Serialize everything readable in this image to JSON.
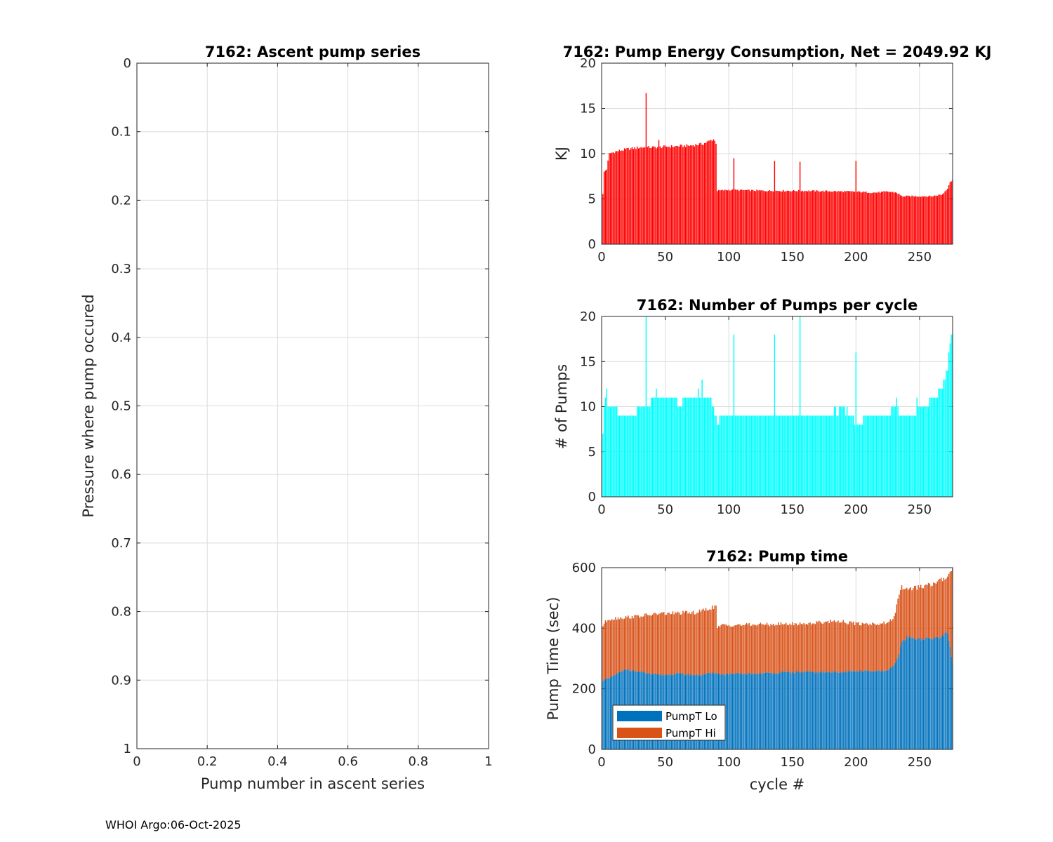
{
  "footer": "WHOI Argo:06-Oct-2025",
  "colors": {
    "energy": "#ff0000",
    "pumps": "#00ffff",
    "lo": "#0072bd",
    "hi": "#d95319",
    "grid": "#dcdcdc",
    "axis": "#262626"
  },
  "chart_data": [
    {
      "id": "ascent",
      "type": "scatter",
      "title": "7162: Ascent pump series",
      "xlabel": "Pump number in ascent series",
      "ylabel": "Pressure where pump occured",
      "xlim": [
        0,
        1
      ],
      "ylim": [
        0,
        1
      ],
      "y_reversed": true,
      "grid": true,
      "xticks": [
        "0",
        "0.2",
        "0.4",
        "0.6",
        "0.8",
        "1"
      ],
      "yticks": [
        "0",
        "0.1",
        "0.2",
        "0.3",
        "0.4",
        "0.5",
        "0.6",
        "0.7",
        "0.8",
        "0.9",
        "1"
      ],
      "series": []
    },
    {
      "id": "energy",
      "type": "bar",
      "title": "7162: Pump Energy Consumption,  Net = 2049.92 KJ",
      "xlabel": "",
      "ylabel": "KJ",
      "xlim": [
        0,
        276
      ],
      "ylim": [
        0,
        20
      ],
      "grid": true,
      "xticks": [
        "0",
        "50",
        "100",
        "150",
        "200",
        "250"
      ],
      "yticks": [
        "0",
        "5",
        "10",
        "15",
        "20"
      ],
      "series": [
        {
          "name": "Energy (KJ)",
          "color": "#ff0000",
          "segments": [
            [
              1,
              5.5
            ],
            [
              2,
              8.0
            ],
            [
              4,
              8.3
            ],
            [
              6,
              10.0
            ],
            [
              10,
              10.2
            ],
            [
              20,
              10.5
            ],
            [
              30,
              10.7
            ],
            [
              40,
              10.7
            ],
            [
              55,
              10.8
            ],
            [
              70,
              10.9
            ],
            [
              80,
              11.1
            ],
            [
              88,
              11.6
            ],
            [
              90,
              11.2
            ],
            [
              91,
              5.9
            ],
            [
              100,
              6.0
            ],
            [
              130,
              5.9
            ],
            [
              160,
              5.9
            ],
            [
              200,
              5.8
            ],
            [
              215,
              5.7
            ],
            [
              225,
              5.8
            ],
            [
              232,
              5.7
            ],
            [
              236,
              5.3
            ],
            [
              260,
              5.3
            ],
            [
              268,
              5.5
            ],
            [
              272,
              6.2
            ],
            [
              274,
              6.9
            ],
            [
              276,
              7.0
            ]
          ],
          "spikes": [
            [
              35,
              16.7
            ],
            [
              45,
              11.5
            ],
            [
              104,
              9.5
            ],
            [
              136,
              9.2
            ],
            [
              156,
              9.1
            ],
            [
              200,
              9.2
            ]
          ]
        }
      ]
    },
    {
      "id": "pumps",
      "type": "bar",
      "title": "7162: Number of Pumps per cycle",
      "xlabel": "",
      "ylabel": "# of Pumps",
      "xlim": [
        0,
        276
      ],
      "ylim": [
        0,
        20
      ],
      "grid": true,
      "xticks": [
        "0",
        "50",
        "100",
        "150",
        "200",
        "250"
      ],
      "yticks": [
        "0",
        "5",
        "10",
        "15",
        "20"
      ],
      "series": [
        {
          "name": "# of Pumps",
          "color": "#00ffff",
          "segments": [
            [
              1,
              7
            ],
            [
              2,
              10
            ],
            [
              6,
              10
            ],
            [
              10,
              10
            ],
            [
              14,
              9
            ],
            [
              26,
              9
            ],
            [
              30,
              10
            ],
            [
              36,
              10
            ],
            [
              40,
              11
            ],
            [
              58,
              11
            ],
            [
              60,
              10
            ],
            [
              70,
              11
            ],
            [
              85,
              11
            ],
            [
              91,
              8
            ],
            [
              94,
              9
            ],
            [
              115,
              9
            ],
            [
              125,
              9
            ],
            [
              140,
              9
            ],
            [
              150,
              9
            ],
            [
              170,
              9
            ],
            [
              180,
              9
            ],
            [
              190,
              10
            ],
            [
              200,
              8
            ],
            [
              210,
              9
            ],
            [
              226,
              9
            ],
            [
              230,
              10
            ],
            [
              234,
              9
            ],
            [
              244,
              9
            ],
            [
              250,
              10
            ],
            [
              256,
              10
            ],
            [
              262,
              11
            ],
            [
              266,
              12
            ],
            [
              270,
              13
            ],
            [
              272,
              14
            ],
            [
              274,
              17
            ],
            [
              276,
              18
            ]
          ],
          "spikes": [
            [
              3,
              11
            ],
            [
              4,
              12
            ],
            [
              35,
              20
            ],
            [
              43,
              12
            ],
            [
              76,
              12
            ],
            [
              79,
              13
            ],
            [
              104,
              18
            ],
            [
              136,
              18
            ],
            [
              156,
              20
            ],
            [
              200,
              16
            ],
            [
              232,
              11
            ],
            [
              248,
              11
            ],
            [
              258,
              11
            ]
          ]
        }
      ]
    },
    {
      "id": "pumptime",
      "type": "bar",
      "stacked": true,
      "title": "7162: Pump time",
      "xlabel": "cycle #",
      "ylabel": "Pump Time (sec)",
      "xlim": [
        0,
        276
      ],
      "ylim": [
        0,
        600
      ],
      "grid": true,
      "legend": {
        "entries": [
          "PumpT Lo",
          "PumpT Hi"
        ],
        "location": "bottom-left"
      },
      "xticks": [
        "0",
        "50",
        "100",
        "150",
        "200",
        "250"
      ],
      "yticks": [
        "0",
        "200",
        "400",
        "600"
      ],
      "series": [
        {
          "name": "PumpT Lo",
          "color": "#0072bd",
          "segments": [
            [
              1,
              230
            ],
            [
              5,
              232
            ],
            [
              10,
              245
            ],
            [
              20,
              265
            ],
            [
              30,
              255
            ],
            [
              45,
              245
            ],
            [
              60,
              250
            ],
            [
              75,
              245
            ],
            [
              85,
              250
            ],
            [
              90,
              255
            ],
            [
              92,
              248
            ],
            [
              120,
              250
            ],
            [
              150,
              255
            ],
            [
              180,
              255
            ],
            [
              200,
              258
            ],
            [
              225,
              258
            ],
            [
              230,
              280
            ],
            [
              233,
              300
            ],
            [
              236,
              355
            ],
            [
              240,
              370
            ],
            [
              250,
              365
            ],
            [
              260,
              365
            ],
            [
              268,
              375
            ],
            [
              272,
              385
            ],
            [
              274,
              340
            ],
            [
              276,
              280
            ]
          ]
        },
        {
          "name": "PumpT Hi",
          "color": "#d95319",
          "segments": [
            [
              1,
              410
            ],
            [
              5,
              430
            ],
            [
              15,
              435
            ],
            [
              30,
              440
            ],
            [
              45,
              448
            ],
            [
              60,
              450
            ],
            [
              75,
              452
            ],
            [
              88,
              470
            ],
            [
              90,
              472
            ],
            [
              91,
              400
            ],
            [
              95,
              410
            ],
            [
              120,
              412
            ],
            [
              160,
              415
            ],
            [
              185,
              425
            ],
            [
              200,
              415
            ],
            [
              220,
              415
            ],
            [
              226,
              420
            ],
            [
              230,
              440
            ],
            [
              233,
              490
            ],
            [
              236,
              535
            ],
            [
              240,
              530
            ],
            [
              250,
              535
            ],
            [
              260,
              545
            ],
            [
              270,
              565
            ],
            [
              274,
              590
            ],
            [
              276,
              600
            ]
          ]
        }
      ]
    }
  ]
}
